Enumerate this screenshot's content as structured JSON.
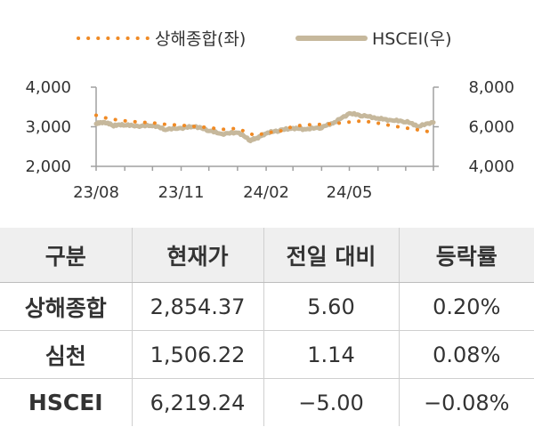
{
  "chart_data": {
    "type": "line",
    "legend_placement": "top",
    "grid": false,
    "x_ticks": [
      "23/08",
      "23/11",
      "24/02",
      "24/05"
    ],
    "y_left": {
      "ticks": [
        "4,000",
        "3,000",
        "2,000"
      ],
      "range": [
        2000,
        4000
      ]
    },
    "y_right": {
      "ticks": [
        "8,000",
        "6,000",
        "4,000"
      ],
      "range": [
        4000,
        8000
      ]
    },
    "x_range": [
      "2023-08-01",
      "2024-07-31"
    ],
    "series": [
      {
        "name": "상해종합(좌)",
        "axis": "left",
        "style": "dotted",
        "color": "#f08a24",
        "x": [
          "2023-08-01",
          "2023-08-15",
          "2023-09-01",
          "2023-09-15",
          "2023-10-01",
          "2023-10-15",
          "2023-11-01",
          "2023-11-15",
          "2023-12-01",
          "2023-12-15",
          "2024-01-01",
          "2024-01-15",
          "2024-01-22",
          "2024-02-01",
          "2024-02-15",
          "2024-03-01",
          "2024-03-15",
          "2024-04-01",
          "2024-04-15",
          "2024-05-01",
          "2024-05-15",
          "2024-06-01",
          "2024-06-15",
          "2024-07-01",
          "2024-07-15",
          "2024-07-31"
        ],
        "y": [
          3290,
          3200,
          3150,
          3120,
          3100,
          3060,
          3040,
          3010,
          2980,
          2930,
          2960,
          2820,
          2780,
          2850,
          2880,
          3010,
          3050,
          3060,
          3080,
          3120,
          3150,
          3090,
          3030,
          2970,
          2920,
          2854
        ]
      },
      {
        "name": "HSCEI(우)",
        "axis": "right",
        "style": "solid",
        "color": "#c6b89c",
        "x": [
          "2023-08-01",
          "2023-08-10",
          "2023-08-20",
          "2023-09-01",
          "2023-09-15",
          "2023-10-01",
          "2023-10-15",
          "2023-11-01",
          "2023-11-15",
          "2023-12-01",
          "2023-12-15",
          "2024-01-01",
          "2024-01-15",
          "2024-01-22",
          "2024-02-01",
          "2024-02-15",
          "2024-03-01",
          "2024-03-15",
          "2024-04-01",
          "2024-04-15",
          "2024-05-01",
          "2024-05-15",
          "2024-06-01",
          "2024-06-15",
          "2024-07-01",
          "2024-07-15",
          "2024-07-31"
        ],
        "y": [
          6150,
          6200,
          6050,
          6080,
          6000,
          6050,
          5850,
          5900,
          6000,
          5800,
          5600,
          5700,
          5300,
          5400,
          5650,
          5800,
          5900,
          5850,
          5950,
          6200,
          6650,
          6550,
          6400,
          6300,
          6250,
          6000,
          6219
        ]
      }
    ]
  },
  "table": {
    "headers": [
      "구분",
      "현재가",
      "전일 대비",
      "등락률"
    ],
    "rows": [
      [
        "상해종합",
        "2,854.37",
        "5.60",
        "0.20%"
      ],
      [
        "심천",
        "1,506.22",
        "1.14",
        "0.08%"
      ],
      [
        "HSCEI",
        "6,219.24",
        "−5.00",
        "−0.08%"
      ]
    ]
  }
}
